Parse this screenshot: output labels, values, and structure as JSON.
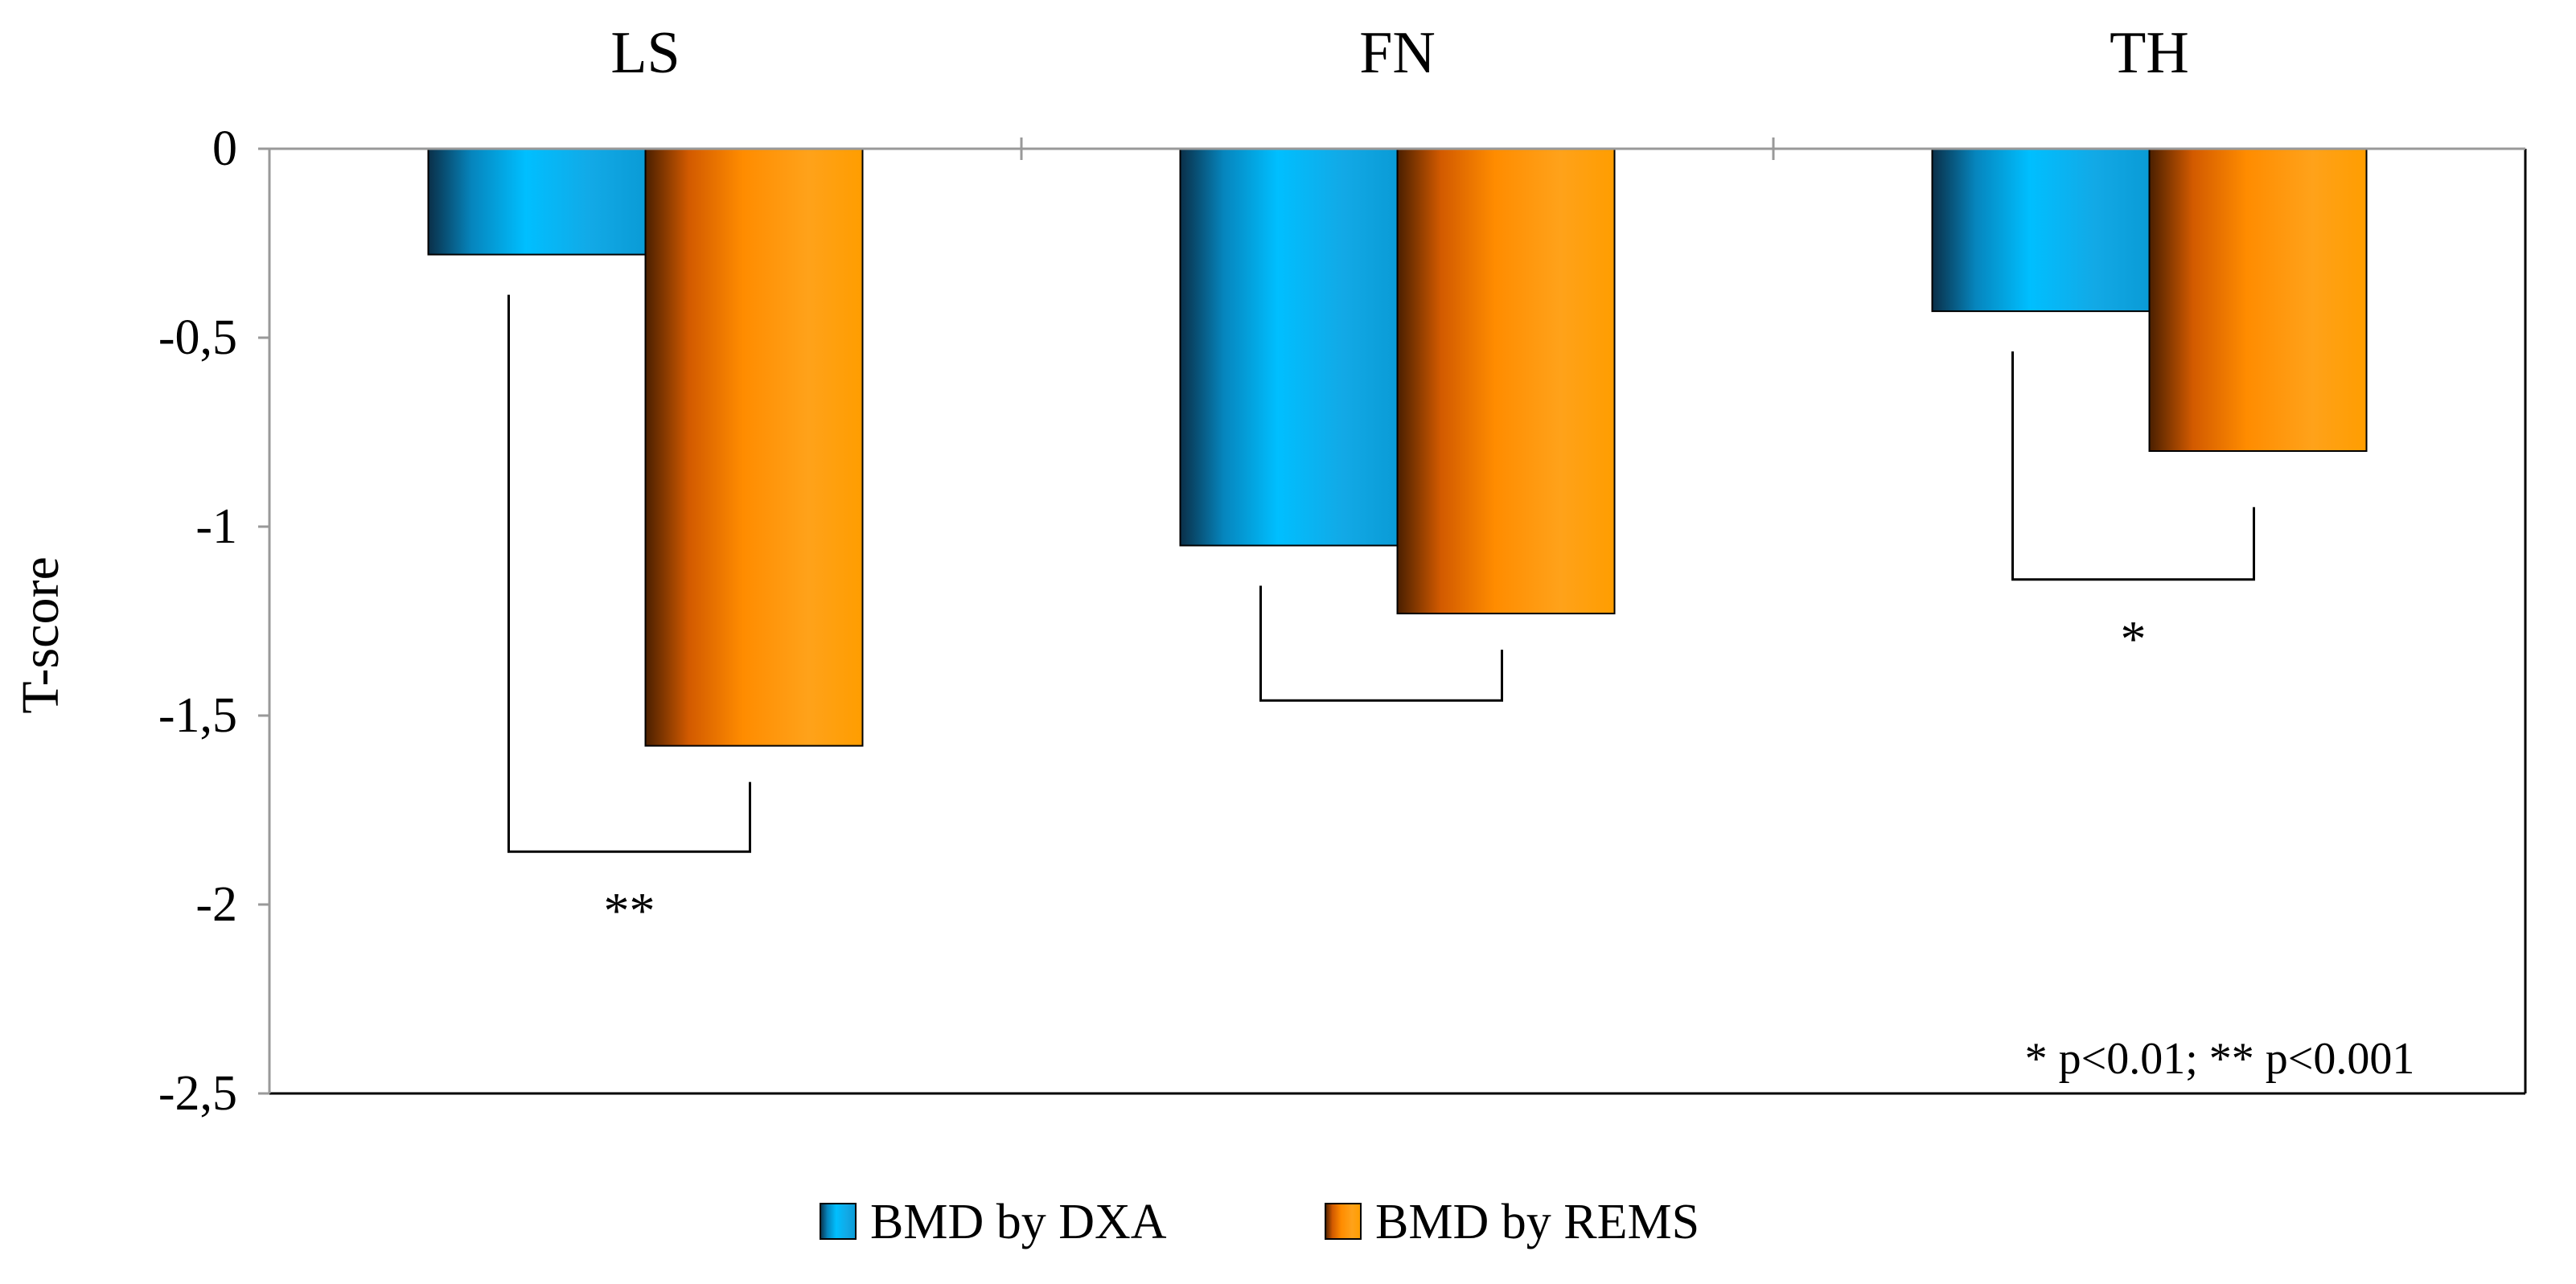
{
  "chart_data": {
    "type": "bar",
    "categories": [
      "LS",
      "FN",
      "TH"
    ],
    "series": [
      {
        "name": "BMD by DXA",
        "values": [
          -0.28,
          -1.05,
          -0.43
        ],
        "color": "#00bfff"
      },
      {
        "name": "BMD by REMS",
        "values": [
          -1.58,
          -1.23,
          -0.8
        ],
        "color": "#ff8c00"
      }
    ],
    "title": "",
    "xlabel": "",
    "ylabel": "T-score",
    "ylim": [
      -2.5,
      0
    ],
    "yticks": [
      0,
      -0.5,
      -1,
      -1.5,
      -2,
      -2.5
    ],
    "ytick_labels": [
      "0",
      "-0,5",
      "-1",
      "-1,5",
      "-2",
      "-2,5"
    ],
    "x_axis_position": "top",
    "grid": false,
    "legend_position": "bottom-center",
    "significance": [
      {
        "category": "LS",
        "label": "**",
        "bracket_y": -1.86
      },
      {
        "category": "FN",
        "label": "",
        "bracket_y": -1.46
      },
      {
        "category": "TH",
        "label": "*",
        "bracket_y": -1.14
      }
    ],
    "annotation": "* p<0.01; ** p<0.001"
  }
}
